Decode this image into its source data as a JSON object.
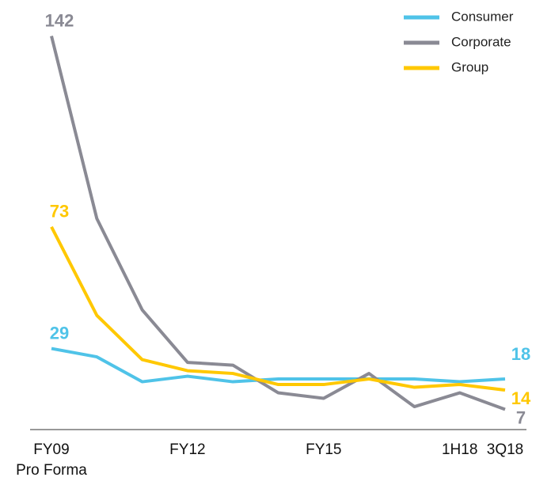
{
  "chart_data": {
    "type": "line",
    "categories": [
      "FY09\nPro Forma",
      null,
      null,
      "FY12",
      null,
      null,
      "FY15",
      null,
      null,
      "1H18",
      "3Q18"
    ],
    "series": [
      {
        "name": "Consumer",
        "color": "#4fc3e8",
        "values": [
          29,
          26,
          17,
          19,
          17,
          18,
          18,
          18,
          18,
          17,
          18
        ]
      },
      {
        "name": "Corporate",
        "color": "#8a8a94",
        "values": [
          142,
          76,
          43,
          24,
          23,
          13,
          11,
          20,
          8,
          13,
          7
        ]
      },
      {
        "name": "Group",
        "color": "#ffc800",
        "values": [
          73,
          41,
          25,
          21,
          20,
          16,
          16,
          18,
          15,
          16,
          14
        ]
      }
    ],
    "ylim": [
      0,
      155
    ],
    "legend": "upper right"
  }
}
